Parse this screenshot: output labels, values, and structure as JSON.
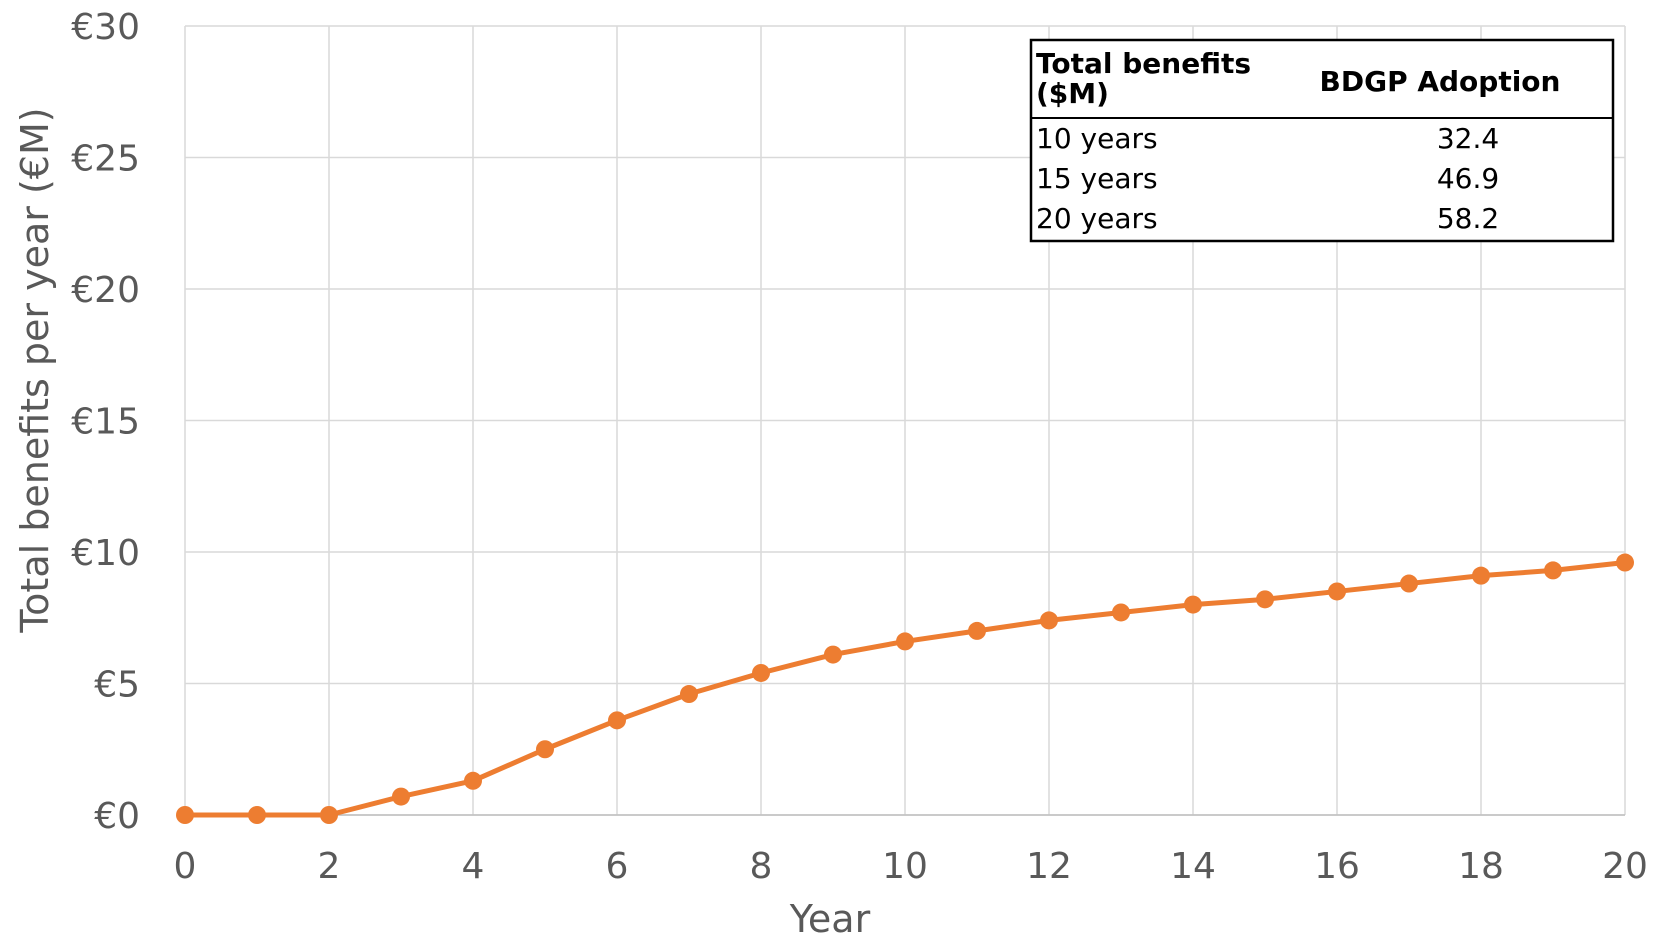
{
  "chart_data": {
    "type": "line",
    "xlabel": "Year",
    "ylabel": "Total benefits per year (€M)",
    "x": [
      0,
      1,
      2,
      3,
      4,
      5,
      6,
      7,
      8,
      9,
      10,
      11,
      12,
      13,
      14,
      15,
      16,
      17,
      18,
      19,
      20
    ],
    "series": [
      {
        "values": [
          0.0,
          0.0,
          0.0,
          0.7,
          1.3,
          2.5,
          3.6,
          4.6,
          5.4,
          6.1,
          6.6,
          7.0,
          7.4,
          7.7,
          8.0,
          8.2,
          8.5,
          8.8,
          9.1,
          9.3,
          9.6
        ],
        "color": "#ED7D31"
      }
    ],
    "xlim": [
      0,
      20
    ],
    "ylim": [
      0,
      30
    ],
    "xticks": [
      "0",
      "2",
      "4",
      "6",
      "8",
      "10",
      "12",
      "14",
      "16",
      "18",
      "20"
    ],
    "yticks": [
      "€0",
      "€5",
      "€10",
      "€15",
      "€20",
      "€25",
      "€30"
    ],
    "grid": true,
    "legend": "none",
    "inset_table": {
      "header_col1": "Total benefits ($M)",
      "header_col2": "BDGP Adoption",
      "rows": [
        {
          "label": "10 years",
          "value": "32.4"
        },
        {
          "label": "15 years",
          "value": "46.9"
        },
        {
          "label": "20 years",
          "value": "58.2"
        }
      ]
    }
  }
}
